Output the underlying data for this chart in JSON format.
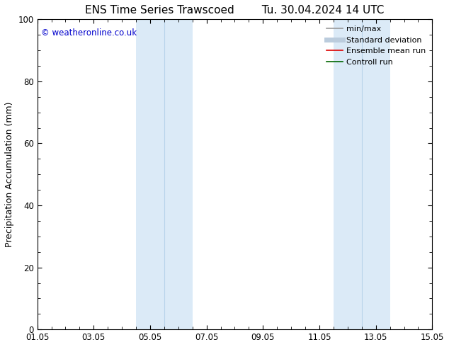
{
  "title_left": "ENS Time Series Trawscoed",
  "title_right": "Tu. 30.04.2024 14 UTC",
  "ylabel": "Precipitation Accumulation (mm)",
  "watermark": "© weatheronline.co.uk",
  "watermark_color": "#0000cc",
  "xlim_start": 0.0,
  "xlim_end": 14.0,
  "ylim": [
    0,
    100
  ],
  "yticks": [
    0,
    20,
    40,
    60,
    80,
    100
  ],
  "xtick_labels": [
    "01.05",
    "03.05",
    "05.05",
    "07.05",
    "09.05",
    "11.05",
    "13.05",
    "15.05"
  ],
  "xtick_positions": [
    0,
    2,
    4,
    6,
    8,
    10,
    12,
    14
  ],
  "shaded_bands": [
    {
      "x_start": 3.5,
      "x_end": 5.5,
      "x_center": 4.5
    },
    {
      "x_start": 10.5,
      "x_end": 12.5,
      "x_center": 11.5
    }
  ],
  "shade_color": "#dbeaf7",
  "shade_line_color": "#b8d4ea",
  "background_color": "#ffffff",
  "legend_entries": [
    {
      "label": "min/max",
      "color": "#999999",
      "lw": 1.2,
      "ls": "-"
    },
    {
      "label": "Standard deviation",
      "color": "#bbccdd",
      "lw": 5,
      "ls": "-"
    },
    {
      "label": "Ensemble mean run",
      "color": "#dd0000",
      "lw": 1.2,
      "ls": "-"
    },
    {
      "label": "Controll run",
      "color": "#006600",
      "lw": 1.2,
      "ls": "-"
    }
  ],
  "title_fontsize": 11,
  "axis_fontsize": 9,
  "tick_fontsize": 8.5,
  "legend_fontsize": 8
}
